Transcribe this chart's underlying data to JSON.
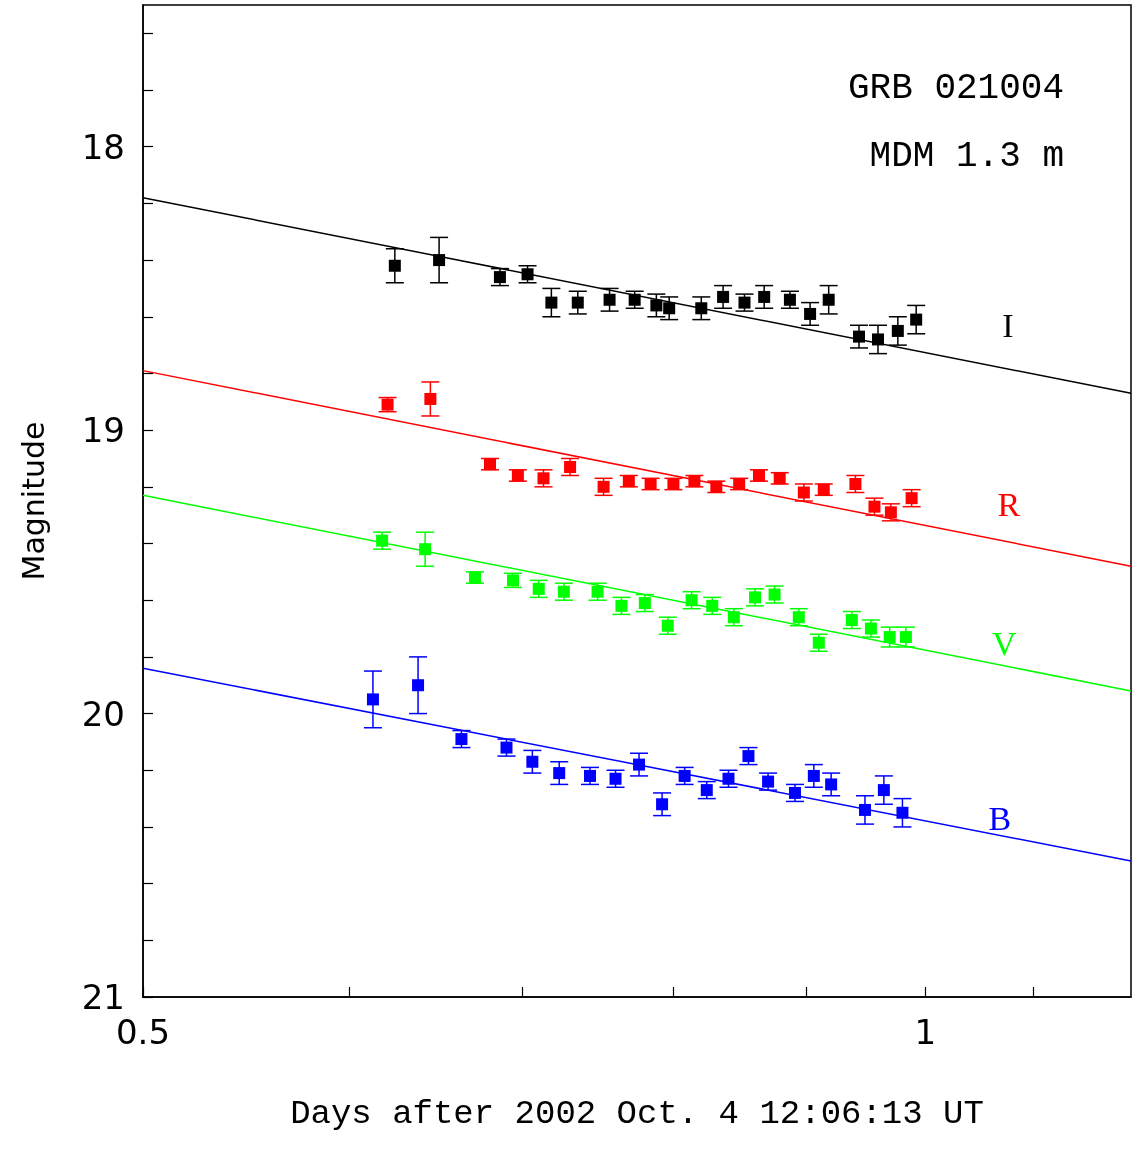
{
  "chart_data": {
    "type": "scatter",
    "xlabel": "Days after 2002 Oct. 4 12:06:13 UT",
    "ylabel": "Magnitude",
    "annotations": [
      "GRB 021004",
      "MDM 1.3 m"
    ],
    "log": "x",
    "xlim": [
      0.5,
      1.2
    ],
    "ylim": [
      21,
      17.5
    ],
    "xticks": [
      0.5,
      {
        "value": 0.6,
        "label": null
      },
      {
        "value": 0.7,
        "label": null
      },
      {
        "value": 0.8,
        "label": null
      },
      {
        "value": 0.9,
        "label": null
      },
      1,
      {
        "value": 1.1,
        "label": null
      }
    ],
    "yticks": [
      {
        "value": 17.6,
        "label": null
      },
      {
        "value": 17.8,
        "label": null
      },
      18,
      {
        "value": 18.2,
        "label": null
      },
      {
        "value": 18.4,
        "label": null
      },
      {
        "value": 18.6,
        "label": null
      },
      {
        "value": 18.8,
        "label": null
      },
      19,
      {
        "value": 19.2,
        "label": null
      },
      {
        "value": 19.4,
        "label": null
      },
      {
        "value": 19.6,
        "label": null
      },
      {
        "value": 19.8,
        "label": null
      },
      20,
      {
        "value": 20.2,
        "label": null
      },
      {
        "value": 20.4,
        "label": null
      },
      {
        "value": 20.6,
        "label": null
      },
      {
        "value": 20.8,
        "label": null
      },
      21
    ],
    "grid": false,
    "legend": false,
    "marker": "square",
    "series": [
      {
        "name": "I",
        "color": "#000000",
        "x": [
          0.625,
          0.65,
          0.686,
          0.703,
          0.718,
          0.735,
          0.756,
          0.773,
          0.788,
          0.797,
          0.82,
          0.836,
          0.852,
          0.867,
          0.887,
          0.903,
          0.918,
          0.943,
          0.959,
          0.976,
          0.992
        ],
        "values": [
          18.42,
          18.4,
          18.46,
          18.45,
          18.55,
          18.55,
          18.54,
          18.54,
          18.56,
          18.57,
          18.57,
          18.53,
          18.55,
          18.53,
          18.54,
          18.59,
          18.54,
          18.67,
          18.68,
          18.65,
          18.61
        ],
        "errors": [
          0.06,
          0.08,
          0.03,
          0.03,
          0.05,
          0.04,
          0.04,
          0.03,
          0.04,
          0.04,
          0.04,
          0.04,
          0.03,
          0.04,
          0.03,
          0.04,
          0.05,
          0.04,
          0.05,
          0.05,
          0.05
        ]
      },
      {
        "name": "R",
        "color": "#ff0000",
        "x": [
          0.621,
          0.645,
          0.68,
          0.697,
          0.713,
          0.73,
          0.752,
          0.769,
          0.784,
          0.8,
          0.815,
          0.831,
          0.848,
          0.863,
          0.879,
          0.898,
          0.914,
          0.94,
          0.956,
          0.97,
          0.988
        ],
        "values": [
          18.91,
          18.89,
          19.12,
          19.16,
          19.17,
          19.13,
          19.2,
          19.18,
          19.19,
          19.19,
          19.18,
          19.2,
          19.19,
          19.16,
          19.17,
          19.22,
          19.21,
          19.19,
          19.27,
          19.29,
          19.24
        ],
        "errors": [
          0.025,
          0.06,
          0.02,
          0.02,
          0.03,
          0.03,
          0.03,
          0.02,
          0.02,
          0.02,
          0.02,
          0.02,
          0.02,
          0.02,
          0.02,
          0.03,
          0.02,
          0.03,
          0.03,
          0.03,
          0.03
        ]
      },
      {
        "name": "V",
        "color": "#00ff00",
        "x": [
          0.618,
          0.642,
          0.671,
          0.694,
          0.71,
          0.726,
          0.748,
          0.764,
          0.78,
          0.796,
          0.813,
          0.828,
          0.844,
          0.86,
          0.875,
          0.894,
          0.91,
          0.937,
          0.953,
          0.969,
          0.983
        ],
        "values": [
          19.39,
          19.42,
          19.52,
          19.53,
          19.56,
          19.57,
          19.57,
          19.62,
          19.61,
          19.69,
          19.6,
          19.62,
          19.66,
          19.59,
          19.58,
          19.66,
          19.75,
          19.67,
          19.7,
          19.73,
          19.73
        ],
        "errors": [
          0.03,
          0.06,
          0.02,
          0.025,
          0.03,
          0.03,
          0.03,
          0.03,
          0.03,
          0.03,
          0.03,
          0.03,
          0.03,
          0.03,
          0.03,
          0.03,
          0.03,
          0.03,
          0.03,
          0.035,
          0.035
        ]
      },
      {
        "name": "B",
        "color": "#0000ff",
        "x": [
          0.613,
          0.638,
          0.663,
          0.69,
          0.706,
          0.723,
          0.743,
          0.76,
          0.776,
          0.792,
          0.808,
          0.824,
          0.84,
          0.855,
          0.87,
          0.891,
          0.906,
          0.92,
          0.948,
          0.964,
          0.98
        ],
        "values": [
          19.95,
          19.9,
          20.09,
          20.12,
          20.17,
          20.21,
          20.22,
          20.23,
          20.18,
          20.32,
          20.22,
          20.27,
          20.23,
          20.15,
          20.24,
          20.28,
          20.22,
          20.25,
          20.34,
          20.27,
          20.35
        ],
        "errors": [
          0.1,
          0.1,
          0.03,
          0.03,
          0.04,
          0.04,
          0.03,
          0.03,
          0.04,
          0.04,
          0.03,
          0.03,
          0.03,
          0.03,
          0.03,
          0.03,
          0.04,
          0.04,
          0.05,
          0.05,
          0.05
        ]
      },
      {
        "type": "line",
        "marker": "none",
        "color": "#000000",
        "x": [
          0.5,
          1.2
        ],
        "values": [
          18.18,
          18.87
        ]
      },
      {
        "type": "line",
        "marker": "none",
        "color": "#ff0000",
        "x": [
          0.5,
          1.2
        ],
        "values": [
          18.79,
          19.48
        ]
      },
      {
        "type": "line",
        "marker": "none",
        "color": "#00ff00",
        "x": [
          0.5,
          1.2
        ],
        "values": [
          19.23,
          19.92
        ]
      },
      {
        "type": "line",
        "marker": "none",
        "color": "#0000ff",
        "x": [
          0.5,
          1.2
        ],
        "values": [
          19.84,
          20.52
        ]
      }
    ]
  }
}
